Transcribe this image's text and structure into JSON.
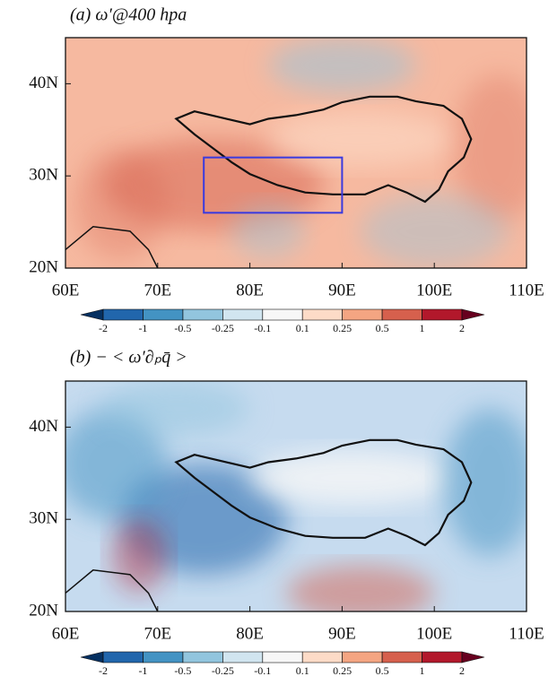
{
  "chart_data": [
    {
      "type": "map",
      "title": "(a) ω′@400 hpa",
      "xlim": [
        60,
        110
      ],
      "ylim": [
        20,
        45
      ],
      "xticks": [
        {
          "value": 60,
          "label": "60E"
        },
        {
          "value": 70,
          "label": "70E"
        },
        {
          "value": 80,
          "label": "80E"
        },
        {
          "value": 90,
          "label": "90E"
        },
        {
          "value": 100,
          "label": "100E"
        },
        {
          "value": 110,
          "label": "110E"
        }
      ],
      "yticks": [
        {
          "value": 20,
          "label": "20N"
        },
        {
          "value": 30,
          "label": "30N"
        },
        {
          "value": 40,
          "label": "40N"
        }
      ],
      "box": {
        "xlim": [
          75,
          90
        ],
        "ylim": [
          26,
          32
        ],
        "color": "#3a3adf"
      },
      "colorbar": {
        "levels": [
          -2,
          -1,
          -0.5,
          -0.25,
          -0.1,
          0.1,
          0.25,
          0.5,
          1,
          2
        ],
        "colors": [
          "#053061",
          "#2166ac",
          "#4393c3",
          "#92c5de",
          "#d1e5f0",
          "#f7f7f7",
          "#fddbc7",
          "#f4a582",
          "#d6604d",
          "#b2182b",
          "#67001f"
        ]
      }
    },
    {
      "type": "map",
      "title": "(b) − < ω′∂ₚq̄ >",
      "xlim": [
        60,
        110
      ],
      "ylim": [
        20,
        45
      ],
      "xticks": [
        {
          "value": 60,
          "label": "60E"
        },
        {
          "value": 70,
          "label": "70E"
        },
        {
          "value": 80,
          "label": "80E"
        },
        {
          "value": 90,
          "label": "90E"
        },
        {
          "value": 100,
          "label": "100E"
        },
        {
          "value": 110,
          "label": "110E"
        }
      ],
      "yticks": [
        {
          "value": 20,
          "label": "20N"
        },
        {
          "value": 30,
          "label": "30N"
        },
        {
          "value": 40,
          "label": "40N"
        }
      ],
      "colorbar": {
        "levels": [
          -2,
          -1,
          -0.5,
          -0.25,
          -0.1,
          0.1,
          0.25,
          0.5,
          1,
          2
        ],
        "colors": [
          "#053061",
          "#2166ac",
          "#4393c3",
          "#92c5de",
          "#d1e5f0",
          "#f7f7f7",
          "#fddbc7",
          "#f4a582",
          "#d6604d",
          "#b2182b",
          "#67001f"
        ]
      }
    }
  ]
}
